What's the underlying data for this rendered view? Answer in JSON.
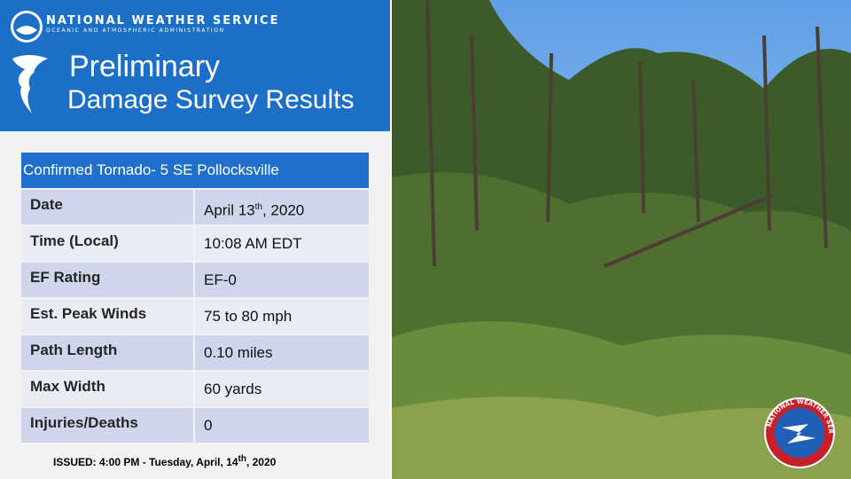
{
  "header": {
    "org": "NATIONAL WEATHER SERVICE",
    "subtitle": "OCEANIC AND ATMOSPHERIC ADMINISTRATION",
    "title_line1": "Preliminary",
    "title_line2": "Damage Survey Results"
  },
  "table": {
    "caption": "Confirmed Tornado- 5 SE Pollocksville",
    "rows": [
      [
        "Date",
        [
          "April 13",
          "th",
          ", 2020"
        ]
      ],
      [
        "Time (Local)",
        "10:08 AM EDT"
      ],
      [
        "EF Rating",
        "EF-0"
      ],
      [
        "Est. Peak Winds",
        "75 to 80 mph"
      ],
      [
        "Path Length",
        "0.10 miles"
      ],
      [
        "Max Width",
        "60 yards"
      ],
      [
        "Injuries/Deaths",
        "0"
      ]
    ]
  },
  "issued": [
    "ISSUED: 4:00 PM - Tuesday, April, 14",
    "th",
    ", 2020"
  ],
  "logo": {
    "text": "NATIONAL WEATHER SERVICE"
  }
}
